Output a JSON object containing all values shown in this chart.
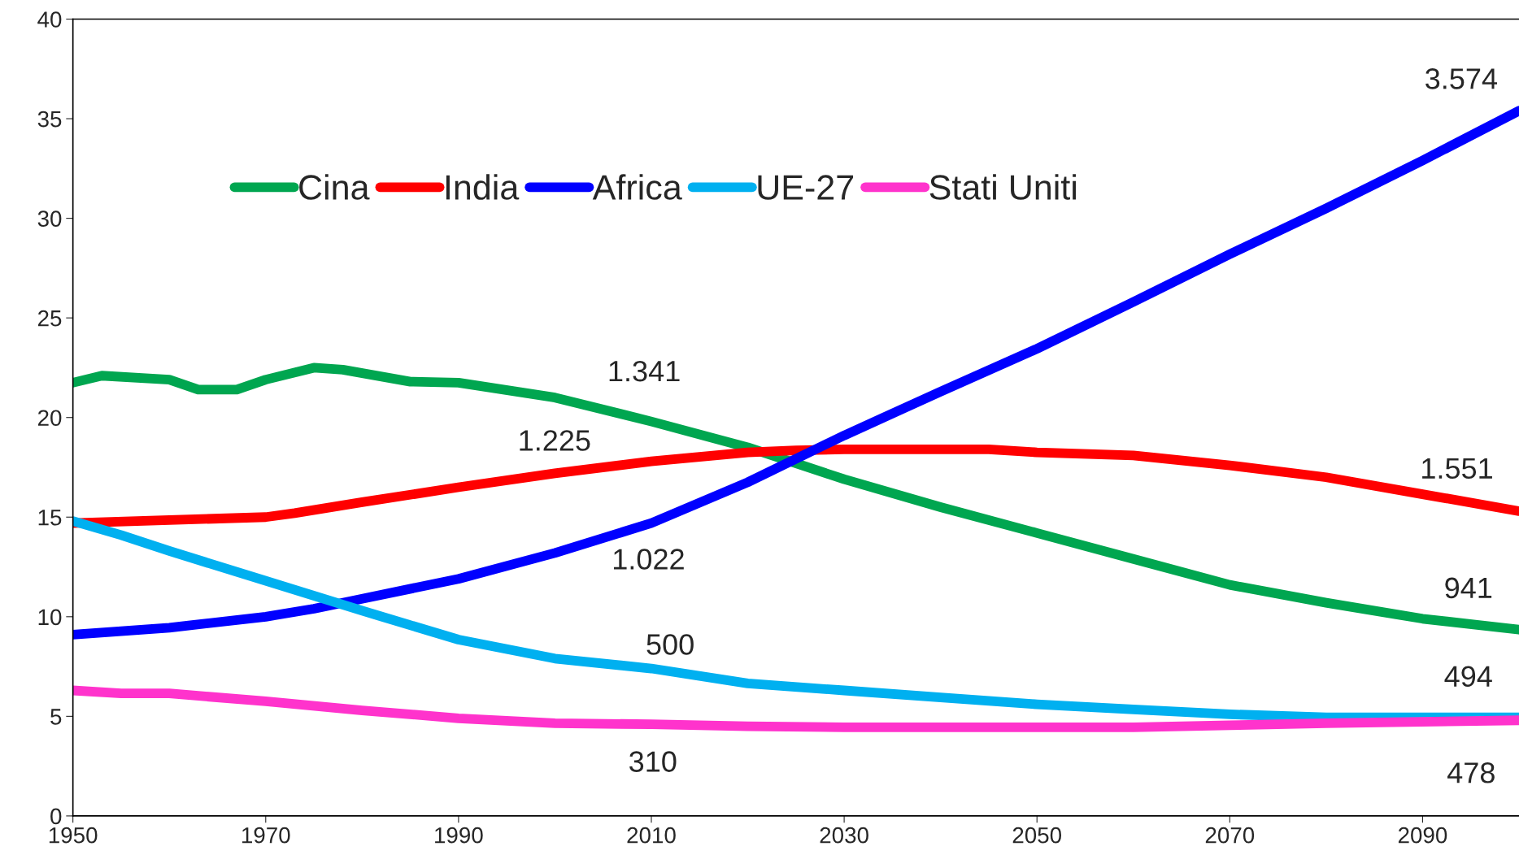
{
  "chart_data": {
    "type": "line",
    "xlim": [
      1950,
      2100
    ],
    "xticks": [
      1950,
      1970,
      1990,
      2010,
      2030,
      2050,
      2070,
      2090
    ],
    "ylim": [
      0,
      40
    ],
    "yticks": [
      0,
      5,
      10,
      15,
      20,
      25,
      30,
      35,
      40
    ],
    "grid": false,
    "legend": "top left",
    "marker": "none",
    "line_style": "solid",
    "series": [
      {
        "name": "Cina",
        "color": "#00a650",
        "x": [
          1950,
          1953,
          1960,
          1963,
          1967,
          1970,
          1975,
          1978,
          1985,
          1990,
          2000,
          2010,
          2020,
          2030,
          2040,
          2050,
          2060,
          2070,
          2080,
          2090,
          2100
        ],
        "values": [
          21.75,
          22.1,
          21.9,
          21.4,
          21.4,
          21.9,
          22.5,
          22.4,
          21.8,
          21.75,
          21.0,
          19.8,
          18.5,
          16.9,
          15.5,
          14.2,
          12.9,
          11.6,
          10.7,
          9.9,
          9.35
        ]
      },
      {
        "name": "India",
        "color": "#ff0000",
        "x": [
          1950,
          1960,
          1970,
          1973,
          1980,
          1990,
          2000,
          2010,
          2020,
          2025,
          2030,
          2045,
          2050,
          2060,
          2070,
          2080,
          2090,
          2100
        ],
        "values": [
          14.7,
          14.85,
          15.0,
          15.2,
          15.75,
          16.5,
          17.2,
          17.8,
          18.25,
          18.35,
          18.4,
          18.4,
          18.25,
          18.1,
          17.6,
          17.0,
          16.15,
          15.3
        ]
      },
      {
        "name": "Africa",
        "color": "#0000ff",
        "x": [
          1950,
          1960,
          1970,
          1975,
          1980,
          1990,
          2000,
          2010,
          2020,
          2030,
          2040,
          2050,
          2060,
          2070,
          2080,
          2090,
          2100
        ],
        "values": [
          9.1,
          9.45,
          10.0,
          10.4,
          10.9,
          11.9,
          13.2,
          14.7,
          16.75,
          19.1,
          21.3,
          23.45,
          25.8,
          28.2,
          30.5,
          32.9,
          35.4
        ]
      },
      {
        "name": "UE-27",
        "color": "#00b0f0",
        "x": [
          1950,
          1955,
          1960,
          1970,
          1980,
          1990,
          2000,
          2010,
          2020,
          2030,
          2040,
          2050,
          2060,
          2070,
          2080,
          2100
        ],
        "values": [
          14.8,
          14.1,
          13.3,
          11.8,
          10.3,
          8.85,
          7.9,
          7.4,
          6.65,
          6.3,
          5.95,
          5.6,
          5.35,
          5.1,
          4.95,
          4.95
        ]
      },
      {
        "name": "Stati Uniti",
        "color": "#ff33cc",
        "x": [
          1950,
          1955,
          1960,
          1970,
          1980,
          1990,
          2000,
          2010,
          2020,
          2030,
          2060,
          2070,
          2080,
          2100
        ],
        "values": [
          6.3,
          6.15,
          6.15,
          5.75,
          5.3,
          4.9,
          4.65,
          4.6,
          4.5,
          4.45,
          4.45,
          4.55,
          4.65,
          4.8
        ]
      }
    ],
    "annotations": [
      "3.574",
      "1.341",
      "1.225",
      "1.551",
      "1.022",
      "941",
      "500",
      "494",
      "310",
      "478"
    ]
  }
}
